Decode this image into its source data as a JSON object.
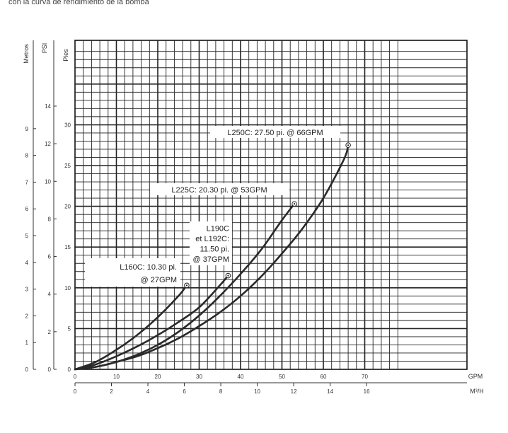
{
  "top_text": "con la curva de rendimiento de la bomba",
  "chart_data": {
    "type": "line",
    "title": "",
    "xlabel": "GPM",
    "xlabel2": "M³/H",
    "ylabel_metros": "Metros",
    "ylabel_psi": "PSI",
    "ylabel_pies": "Pies",
    "xlim_gpm": [
      0,
      80
    ],
    "ylim_pies": [
      0,
      40
    ],
    "xticks_gpm": [
      "0",
      "10",
      "20",
      "30",
      "40",
      "50",
      "60",
      "70"
    ],
    "xticks_m3h": [
      "0",
      "2",
      "4",
      "6",
      "8",
      "10",
      "12",
      "14",
      "16"
    ],
    "yticks_pies": [
      "0",
      "5",
      "10",
      "15",
      "20",
      "25",
      "30"
    ],
    "yticks_psi": [
      "0",
      "2",
      "4",
      "6",
      "8",
      "10",
      "12",
      "14"
    ],
    "yticks_metros": [
      "0",
      "1",
      "2",
      "3",
      "4",
      "5",
      "6",
      "7",
      "8",
      "9"
    ],
    "grid": true,
    "series": [
      {
        "name": "L160C",
        "x": [
          0,
          5,
          10,
          15,
          20,
          25,
          27
        ],
        "y": [
          0,
          0.9,
          2.4,
          4.2,
          6.4,
          9.0,
          10.3
        ]
      },
      {
        "name": "L190C et L192C",
        "x": [
          0,
          5,
          10,
          15,
          20,
          25,
          30,
          35,
          37
        ],
        "y": [
          0,
          0.6,
          1.6,
          2.8,
          4.2,
          5.8,
          7.6,
          10.3,
          11.5
        ]
      },
      {
        "name": "L225C",
        "x": [
          0,
          5,
          10,
          15,
          20,
          25,
          30,
          35,
          40,
          45,
          50,
          53
        ],
        "y": [
          0,
          0.3,
          0.9,
          1.8,
          3.0,
          4.6,
          6.6,
          9.0,
          11.7,
          14.7,
          18.3,
          20.3
        ]
      },
      {
        "name": "L250C",
        "x": [
          0,
          5,
          10,
          15,
          20,
          25,
          30,
          35,
          40,
          45,
          50,
          55,
          60,
          65,
          66
        ],
        "y": [
          0,
          0.3,
          0.9,
          1.6,
          2.6,
          3.8,
          5.3,
          7.0,
          9.0,
          11.4,
          14.2,
          17.3,
          21.0,
          25.8,
          27.5
        ]
      }
    ],
    "annotations": [
      {
        "series": "L160C",
        "lines": [
          "L160C: 10.30 pi.",
          "@ 27GPM"
        ]
      },
      {
        "series": "L190C et L192C",
        "lines": [
          "L190C",
          "et L192C:",
          "11.50 pi.",
          "@ 37GPM"
        ]
      },
      {
        "series": "L225C",
        "lines": [
          "L225C: 20.30 pi. @ 53GPM"
        ]
      },
      {
        "series": "L250C",
        "lines": [
          "L250C: 27.50 pi. @ 66GPM"
        ]
      }
    ]
  }
}
